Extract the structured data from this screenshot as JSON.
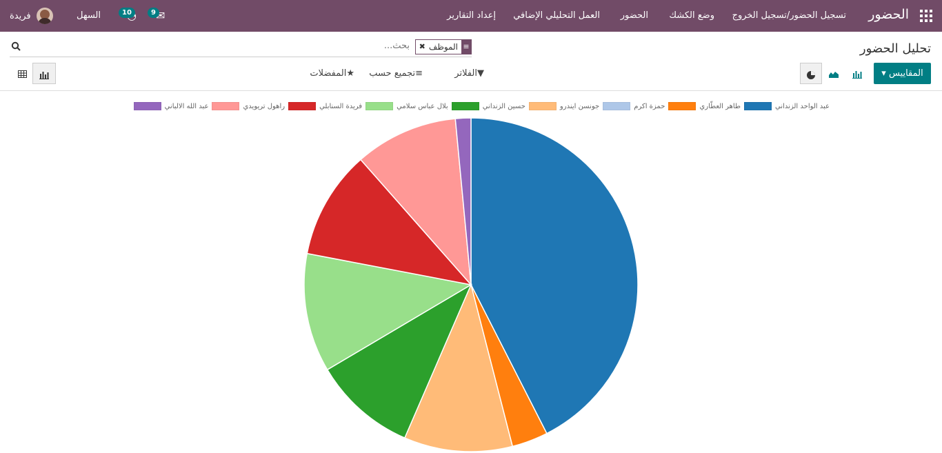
{
  "navbar": {
    "brand": "الحضور",
    "menu": [
      "تسجيل الحضور/تسجيل الخروج",
      "وضع الكشك",
      "الحضور",
      "العمل التحليلي الإضافي",
      "إعداد التقارير"
    ],
    "user_name": "فريدة",
    "company": "السهل",
    "messages_count": "9",
    "activities_count": "10"
  },
  "page": {
    "title": "تحليل الحضور"
  },
  "search": {
    "facet_value": "الموظف",
    "placeholder": "بحث..."
  },
  "toolbar": {
    "measures_label": "المقاييس",
    "filters_label": "الفلاتر",
    "groupby_label": "تجميع حسب",
    "favorites_label": "المفضلات"
  },
  "colors": {
    "brand": "#714b67",
    "accent": "#017e84"
  },
  "chart_data": {
    "type": "pie",
    "series": [
      {
        "name": "عبد الواحد الزنداني",
        "value": 42.5,
        "color": "#1f77b4"
      },
      {
        "name": "طاهر العطّاري",
        "value": 3.5,
        "color": "#ff7f0e"
      },
      {
        "name": "حمزة اكرم",
        "value": 0,
        "color": "#aec7e8"
      },
      {
        "name": "جونسن ايندرو",
        "value": 10.5,
        "color": "#ffbb78"
      },
      {
        "name": "حسين الزنداني",
        "value": 10.0,
        "color": "#2ca02c"
      },
      {
        "name": "بلال عباس سلامي",
        "value": 11.5,
        "color": "#98df8a"
      },
      {
        "name": "فريدة السنابلي",
        "value": 10.5,
        "color": "#d62728"
      },
      {
        "name": "راهول تريويدي",
        "value": 10.0,
        "color": "#ff9896"
      },
      {
        "name": "عبد الله الالباني",
        "value": 1.5,
        "color": "#9467bd"
      }
    ],
    "legend_position": "top"
  }
}
